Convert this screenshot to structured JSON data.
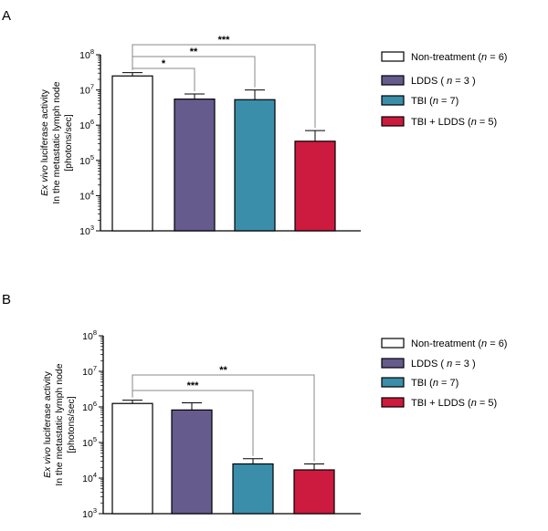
{
  "panels": [
    {
      "letter": "A",
      "legend": [
        "Non-treatment (n = 6)",
        "LDDS ( n = 3 )",
        "TBI (n = 7)",
        "TBI + LDDS (n = 5)"
      ]
    },
    {
      "letter": "B",
      "legend": [
        "Non-treatment (n = 6)",
        "LDDS ( n = 3 )",
        "TBI (n = 7)",
        "TBI + LDDS (n = 5)"
      ]
    }
  ],
  "colors": {
    "non_treatment": "#ffffff",
    "ldds": "#655b8d",
    "tbi": "#3a8ea9",
    "tbi_ldds": "#cd1a3f"
  },
  "chart_data": [
    {
      "panel": "A",
      "type": "bar",
      "ylabel": "Ex vivo luciferase activity In the metastatic lymph node [photons/sec]",
      "ylabel_lines": [
        "Ex vivo luciferase activity",
        "In the metastatic lymph node",
        "[photons/sec]"
      ],
      "y_scale": "log",
      "ylim": [
        1000,
        100000000
      ],
      "yticks": [
        {
          "value": 1000,
          "base": "10",
          "exp": "3"
        },
        {
          "value": 10000,
          "base": "10",
          "exp": "4"
        },
        {
          "value": 100000,
          "base": "10",
          "exp": "5"
        },
        {
          "value": 1000000,
          "base": "10",
          "exp": "6"
        },
        {
          "value": 10000000,
          "base": "10",
          "exp": "7"
        },
        {
          "value": 100000000,
          "base": "10",
          "exp": "8"
        }
      ],
      "categories": [
        "Non-treatment (n = 6)",
        "LDDS ( n = 3 )",
        "TBI (n = 7)",
        "TBI + LDDS (n = 5)"
      ],
      "values": [
        25000000,
        5500000,
        5300000,
        350000
      ],
      "errors_upper": [
        31000000,
        7700000,
        10000000,
        700000
      ],
      "significance": [
        {
          "from": 0,
          "to": 1,
          "label": "*"
        },
        {
          "from": 0,
          "to": 2,
          "label": "**"
        },
        {
          "from": 0,
          "to": 3,
          "label": "***"
        }
      ],
      "legend_position": "right"
    },
    {
      "panel": "B",
      "type": "bar",
      "ylabel": "Ex vivo luciferase activity In the metastatic lymph node [photons/sec]",
      "ylabel_lines": [
        "Ex vivo luciferase activity",
        "In the metastatic lymph node",
        "[photons/sec]"
      ],
      "y_scale": "log",
      "ylim": [
        1000,
        100000000
      ],
      "yticks": [
        {
          "value": 1000,
          "base": "10",
          "exp": "3"
        },
        {
          "value": 10000,
          "base": "10",
          "exp": "4"
        },
        {
          "value": 100000,
          "base": "10",
          "exp": "5"
        },
        {
          "value": 1000000,
          "base": "10",
          "exp": "6"
        },
        {
          "value": 10000000,
          "base": "10",
          "exp": "7"
        },
        {
          "value": 100000000,
          "base": "10",
          "exp": "8"
        }
      ],
      "categories": [
        "Non-treatment (n = 6)",
        "LDDS ( n = 3 )",
        "TBI (n = 7)",
        "TBI + LDDS (n = 5)"
      ],
      "values": [
        1250000,
        820000,
        25000,
        17000
      ],
      "errors_upper": [
        1550000,
        1300000,
        35000,
        25000
      ],
      "significance": [
        {
          "from": 0,
          "to": 2,
          "label": "***"
        },
        {
          "from": 0,
          "to": 3,
          "label": "**"
        }
      ],
      "legend_position": "right"
    }
  ]
}
